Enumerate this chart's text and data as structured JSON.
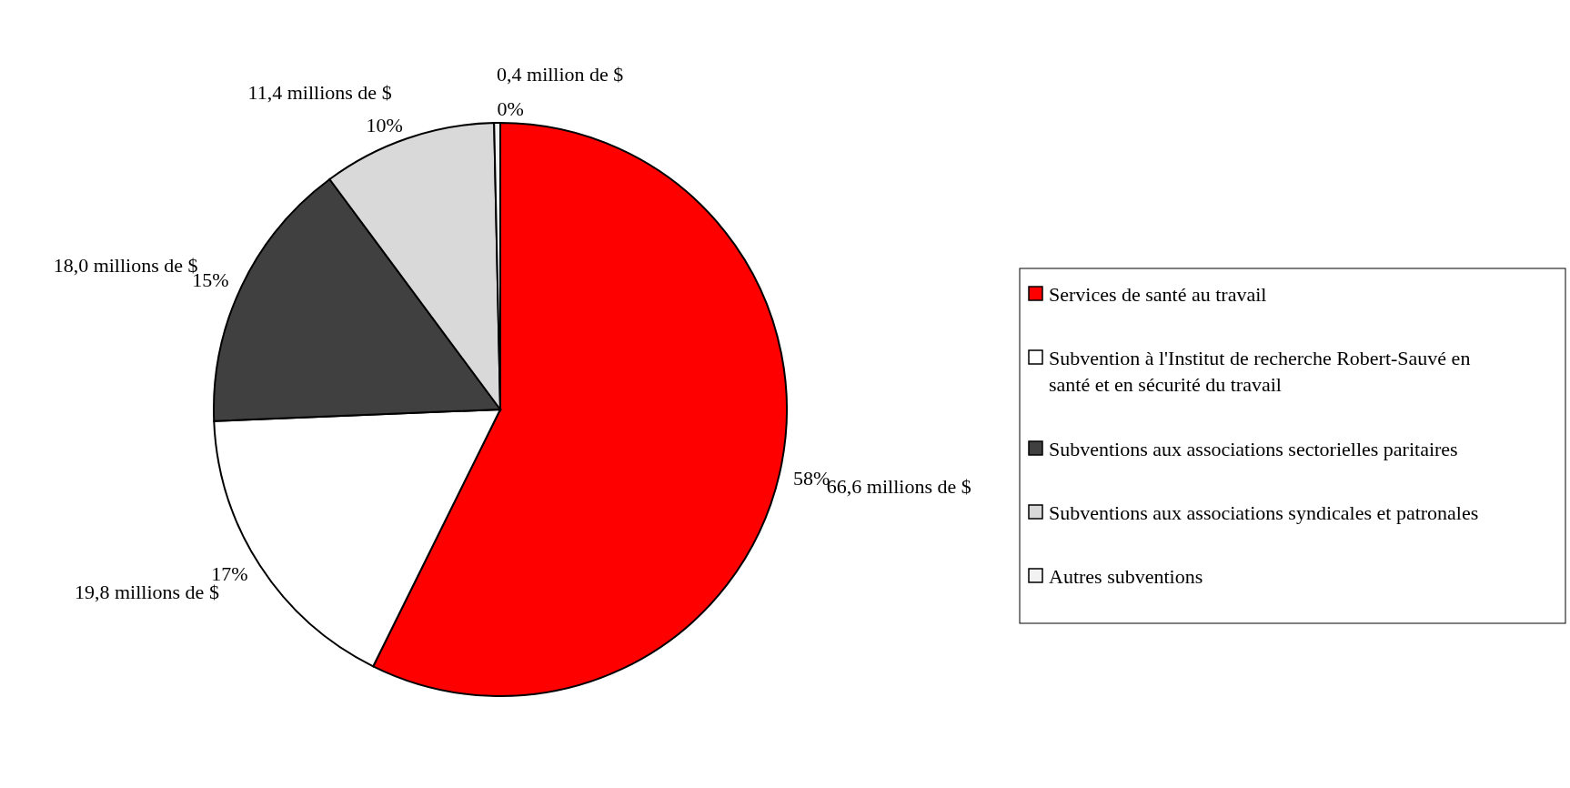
{
  "chart_data": {
    "type": "pie",
    "categories": [
      "Services de santé au travail",
      "Subvention à l'Institut de recherche Robert-Sauvé en santé et en sécurité du travail",
      "Subventions aux associations sectorielles paritaires",
      "Subventions aux associations syndicales et patronales",
      "Autres subventions"
    ],
    "values": [
      66.6,
      19.8,
      18.0,
      11.4,
      0.4
    ],
    "colors": [
      "#ff0000",
      "#ffffff",
      "#404040",
      "#d9d9d9",
      "#f2f2f2"
    ],
    "value_labels": [
      "66,6 millions de $",
      "19,8 millions de $",
      "18,0 millions de $",
      "11,4 millions de $",
      "0,4 million de $"
    ],
    "annotations": [
      "58%",
      "17%",
      "15%",
      "10%",
      "0%"
    ],
    "legend": "right"
  }
}
